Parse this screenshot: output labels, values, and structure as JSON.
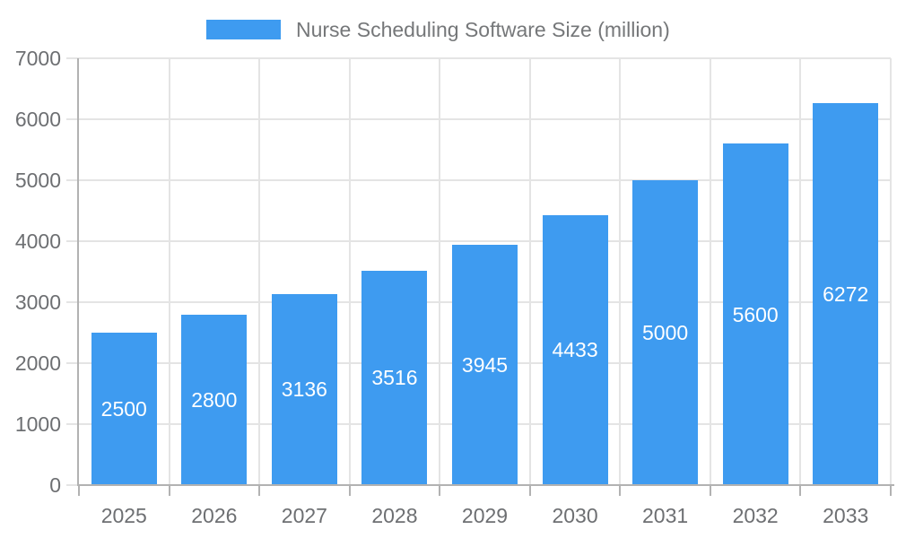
{
  "chart_data": {
    "type": "bar",
    "title": "",
    "legend_entries": [
      "Nurse Scheduling Software Size (million)"
    ],
    "legend_position": "top-center",
    "categories": [
      "2025",
      "2026",
      "2027",
      "2028",
      "2029",
      "2030",
      "2031",
      "2032",
      "2033"
    ],
    "series": [
      {
        "name": "Nurse Scheduling Software Size (million)",
        "values": [
          2500,
          2800,
          3136,
          3516,
          3945,
          4433,
          5000,
          5600,
          6272
        ]
      }
    ],
    "value_labels_visible": true,
    "xlabel": "",
    "ylabel": "",
    "ylim": [
      0,
      7000
    ],
    "y_ticks": [
      0,
      1000,
      2000,
      3000,
      4000,
      5000,
      6000,
      7000
    ],
    "grid": true,
    "colors": {
      "bar": "#3E9BF0",
      "bar_label": "#ffffff",
      "grid": "#e4e4e4",
      "axis": "#b2b2b2",
      "tick_text": "#6d6f72",
      "legend_text": "#757779",
      "background": "#ffffff"
    }
  }
}
